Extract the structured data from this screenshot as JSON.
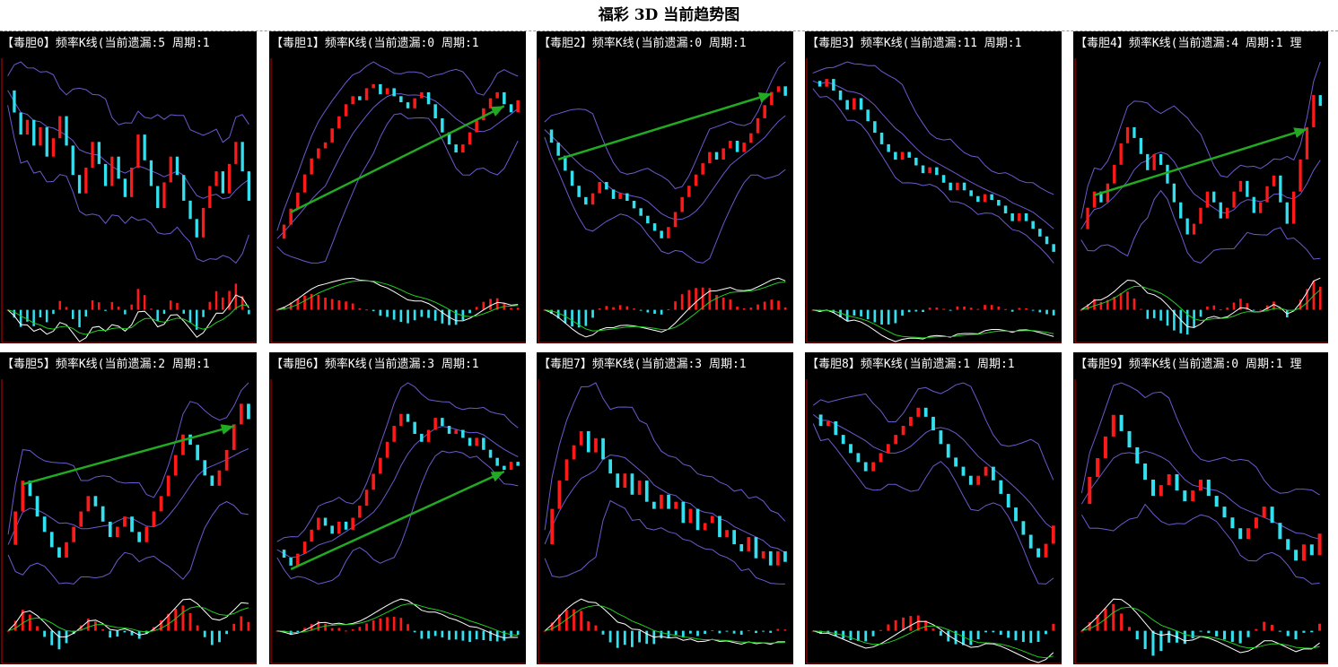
{
  "page": {
    "title": "福彩 3D 当前趋势图"
  },
  "colors": {
    "background": "#000000",
    "up_bar": "#ff1a1a",
    "down_bar": "#33e0f0",
    "band": "#6a5acd",
    "arrow": "#22aa22",
    "macd_line": "#ffffff",
    "signal_line": "#22cc22",
    "axis": "#cc0000"
  },
  "chart_data": [
    {
      "type": "kline",
      "header": "【毒胆0】频率K线(当前遗漏:5 周期:1",
      "price": [
        70,
        64,
        58,
        62,
        55,
        60,
        52,
        57,
        63,
        55,
        47,
        42,
        49,
        56,
        50,
        44,
        52,
        46,
        41,
        49,
        58,
        51,
        44,
        38,
        45,
        52,
        47,
        40,
        35,
        30,
        38,
        44,
        48,
        42,
        50,
        56,
        48,
        40
      ],
      "arrow": false
    },
    {
      "type": "kline",
      "header": "【毒胆1】频率K线(当前遗漏:0 周期:1",
      "price": [
        15,
        22,
        30,
        38,
        47,
        55,
        60,
        63,
        70,
        76,
        82,
        86,
        84,
        90,
        92,
        87,
        90,
        86,
        83,
        80,
        85,
        88,
        82,
        75,
        68,
        62,
        58,
        62,
        68,
        74,
        80,
        85,
        88,
        82,
        78,
        84
      ],
      "arrow": true
    },
    {
      "type": "kline",
      "header": "【毒胆2】频率K线(当前遗漏:0 周期:1",
      "price": [
        72,
        65,
        58,
        50,
        42,
        36,
        32,
        38,
        44,
        40,
        35,
        38,
        34,
        30,
        26,
        22,
        18,
        14,
        20,
        28,
        36,
        42,
        48,
        54,
        60,
        56,
        62,
        66,
        60,
        65,
        70,
        78,
        85,
        92,
        95,
        90
      ],
      "arrow": true
    },
    {
      "type": "kline",
      "header": "【毒胆3】频率K线(当前遗漏:11 周期:1",
      "price": [
        95,
        92,
        96,
        90,
        85,
        80,
        86,
        80,
        74,
        68,
        62,
        58,
        54,
        58,
        55,
        51,
        47,
        50,
        46,
        42,
        38,
        42,
        38,
        35,
        32,
        36,
        33,
        30,
        26,
        22,
        26,
        22,
        18,
        14,
        10,
        6
      ],
      "arrow": false
    },
    {
      "type": "kline",
      "header": "【毒胆4】频率K线(当前遗漏:4 周期:1 理",
      "price": [
        38,
        46,
        52,
        48,
        55,
        62,
        70,
        76,
        72,
        66,
        60,
        66,
        62,
        55,
        48,
        42,
        36,
        40,
        46,
        52,
        48,
        42,
        46,
        52,
        56,
        50,
        44,
        48,
        54,
        58,
        48,
        40,
        52,
        64,
        76,
        88,
        84
      ],
      "arrow": true
    },
    {
      "type": "kline",
      "header": "【毒胆5】频率K线(当前遗漏:2 周期:1",
      "price": [
        35,
        48,
        60,
        54,
        46,
        40,
        34,
        30,
        36,
        42,
        48,
        54,
        50,
        44,
        38,
        42,
        46,
        40,
        36,
        42,
        48,
        54,
        62,
        70,
        78,
        74,
        68,
        62,
        58,
        64,
        72,
        82,
        90,
        84
      ],
      "arrow": true
    },
    {
      "type": "kline",
      "header": "【毒胆6】频率K线(当前遗漏:3 周期:1",
      "price": [
        20,
        16,
        12,
        18,
        24,
        30,
        36,
        32,
        28,
        34,
        30,
        36,
        42,
        50,
        58,
        66,
        74,
        82,
        88,
        84,
        78,
        74,
        80,
        86,
        82,
        78,
        80,
        76,
        72,
        76,
        70,
        66,
        62,
        60,
        64,
        62
      ],
      "arrow": true
    },
    {
      "type": "kline",
      "header": "【毒胆7】频率K线(当前遗漏:3 周期:1",
      "price": [
        60,
        70,
        78,
        84,
        88,
        92,
        86,
        90,
        84,
        80,
        76,
        80,
        74,
        78,
        72,
        70,
        74,
        70,
        72,
        66,
        70,
        64,
        66,
        68,
        62,
        64,
        60,
        58,
        62,
        56,
        58,
        54,
        58,
        55
      ],
      "arrow": false
    },
    {
      "type": "kline",
      "header": "【毒胆8】频率K线(当前遗漏:1 周期:1",
      "price": [
        75,
        70,
        72,
        66,
        62,
        58,
        54,
        50,
        54,
        58,
        62,
        66,
        70,
        74,
        78,
        74,
        68,
        62,
        56,
        52,
        48,
        44,
        48,
        52,
        46,
        40,
        34,
        28,
        22,
        16,
        12,
        18,
        26
      ],
      "arrow": false
    },
    {
      "type": "kline",
      "header": "【毒胆9】频率K线(当前遗漏:0 周期:1 理",
      "price": [
        45,
        55,
        62,
        70,
        78,
        72,
        66,
        60,
        54,
        48,
        52,
        56,
        50,
        46,
        50,
        54,
        48,
        44,
        40,
        36,
        32,
        36,
        40,
        44,
        38,
        32,
        28,
        24,
        30,
        26,
        34
      ],
      "arrow": false
    }
  ]
}
